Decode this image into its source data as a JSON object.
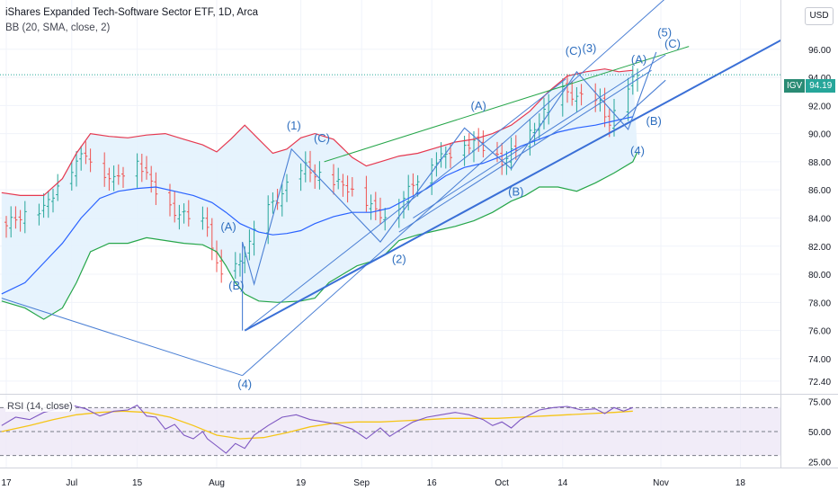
{
  "header": {
    "title": "iShares Expanded Tech-Software Sector ETF, 1D, Arca",
    "indicator": "BB (20, SMA, close, 2)",
    "rsi_label": "RSI (14, close)",
    "currency": "USD",
    "symbol": "IGV",
    "last_price": "94.19"
  },
  "colors": {
    "up": "#26a69a",
    "down": "#ef5350",
    "bb_upper": "#e53950",
    "bb_basis": "#2962ff",
    "bb_lower": "#26a64a",
    "bb_fill": "#e3f2fd",
    "rsi_line": "#7e57c2",
    "rsi_ma": "#f5c518",
    "wave_line": "#4a7fd4",
    "wave_label": "#2f6fbf",
    "trend_line": "#3a6fd6"
  },
  "chart_data": {
    "type": "candlestick",
    "title": "iShares Expanded Tech-Software Sector ETF, 1D, Arca",
    "ylim": [
      71.5,
      99.5
    ],
    "y_ticks": [
      "96.00",
      "94.00",
      "92.00",
      "90.00",
      "88.00",
      "86.00",
      "84.00",
      "82.00",
      "80.00",
      "78.00",
      "76.00",
      "74.00",
      "72.40"
    ],
    "x_ticks": [
      {
        "label": "17",
        "day": 0
      },
      {
        "label": "Jul",
        "day": 14
      },
      {
        "label": "15",
        "day": 28
      },
      {
        "label": "Aug",
        "day": 45
      },
      {
        "label": "19",
        "day": 63
      },
      {
        "label": "Sep",
        "day": 76
      },
      {
        "label": "16",
        "day": 91
      },
      {
        "label": "Oct",
        "day": 106
      },
      {
        "label": "14",
        "day": 119
      },
      {
        "label": "Nov",
        "day": 140
      },
      {
        "label": "18",
        "day": 157
      }
    ],
    "close_path": [
      [
        -1,
        83.2
      ],
      [
        3,
        84.2
      ],
      [
        8,
        84.6
      ],
      [
        12,
        86.9
      ],
      [
        17,
        88.6
      ],
      [
        20,
        87.5
      ],
      [
        23,
        86.6
      ],
      [
        26,
        87.7
      ],
      [
        28,
        88.2
      ],
      [
        31,
        86.4
      ],
      [
        34,
        85.2
      ],
      [
        37,
        84.2
      ],
      [
        40,
        84.0
      ],
      [
        43,
        83.6
      ],
      [
        45,
        80.5
      ],
      [
        47,
        79.3
      ],
      [
        49,
        80.4
      ],
      [
        52,
        82.2
      ],
      [
        55,
        84.3
      ],
      [
        58,
        85.4
      ],
      [
        61,
        86.6
      ],
      [
        64,
        87.6
      ],
      [
        67,
        87.0
      ],
      [
        70,
        86.5
      ],
      [
        73,
        86.2
      ],
      [
        76,
        85.6
      ],
      [
        79,
        84.4
      ],
      [
        82,
        84.1
      ],
      [
        85,
        85.4
      ],
      [
        88,
        86.9
      ],
      [
        91,
        88.0
      ],
      [
        94,
        88.4
      ],
      [
        97,
        89.1
      ],
      [
        100,
        89.4
      ],
      [
        103,
        88.8
      ],
      [
        106,
        88.1
      ],
      [
        109,
        88.8
      ],
      [
        112,
        89.9
      ],
      [
        115,
        91.5
      ],
      [
        118,
        93.1
      ],
      [
        121,
        92.8
      ],
      [
        124,
        92.3
      ],
      [
        127,
        92.1
      ],
      [
        129,
        90.8
      ],
      [
        132,
        92.4
      ],
      [
        133,
        93.2
      ],
      [
        135,
        94.2
      ]
    ],
    "bb_upper": [
      [
        -1,
        85.8
      ],
      [
        3,
        85.6
      ],
      [
        8,
        85.6
      ],
      [
        12,
        86.8
      ],
      [
        15,
        88.6
      ],
      [
        18,
        90.0
      ],
      [
        22,
        89.8
      ],
      [
        26,
        89.7
      ],
      [
        30,
        89.9
      ],
      [
        34,
        90.0
      ],
      [
        38,
        89.6
      ],
      [
        42,
        89.2
      ],
      [
        45,
        88.7
      ],
      [
        48,
        89.6
      ],
      [
        51,
        90.6
      ],
      [
        54,
        89.6
      ],
      [
        57,
        88.6
      ],
      [
        60,
        88.9
      ],
      [
        63,
        89.7
      ],
      [
        66,
        90.0
      ],
      [
        70,
        89.6
      ],
      [
        74,
        88.3
      ],
      [
        77,
        87.7
      ],
      [
        80,
        88.0
      ],
      [
        84,
        88.4
      ],
      [
        88,
        88.6
      ],
      [
        92,
        89.0
      ],
      [
        96,
        89.4
      ],
      [
        100,
        89.6
      ],
      [
        104,
        90.0
      ],
      [
        108,
        90.6
      ],
      [
        112,
        91.6
      ],
      [
        116,
        93.0
      ],
      [
        120,
        94.1
      ],
      [
        124,
        94.4
      ],
      [
        128,
        94.6
      ],
      [
        131,
        94.4
      ],
      [
        134,
        94.5
      ]
    ],
    "bb_basis": [
      [
        -1,
        78.6
      ],
      [
        4,
        79.4
      ],
      [
        8,
        80.8
      ],
      [
        12,
        82.2
      ],
      [
        16,
        84.0
      ],
      [
        20,
        85.4
      ],
      [
        24,
        85.9
      ],
      [
        28,
        86.1
      ],
      [
        32,
        86.2
      ],
      [
        36,
        85.9
      ],
      [
        40,
        85.6
      ],
      [
        44,
        85.1
      ],
      [
        47,
        84.4
      ],
      [
        50,
        83.6
      ],
      [
        54,
        83.0
      ],
      [
        57,
        82.8
      ],
      [
        60,
        82.9
      ],
      [
        63,
        83.1
      ],
      [
        66,
        83.6
      ],
      [
        70,
        84.1
      ],
      [
        74,
        84.4
      ],
      [
        78,
        84.4
      ],
      [
        82,
        84.7
      ],
      [
        86,
        85.4
      ],
      [
        90,
        86.1
      ],
      [
        94,
        87.0
      ],
      [
        98,
        87.6
      ],
      [
        102,
        87.9
      ],
      [
        106,
        88.4
      ],
      [
        110,
        89.1
      ],
      [
        114,
        89.6
      ],
      [
        118,
        90.1
      ],
      [
        122,
        90.4
      ],
      [
        126,
        90.6
      ],
      [
        130,
        90.9
      ],
      [
        134,
        91.2
      ]
    ],
    "bb_lower": [
      [
        -1,
        78.1
      ],
      [
        4,
        77.6
      ],
      [
        8,
        76.8
      ],
      [
        12,
        77.6
      ],
      [
        15,
        79.4
      ],
      [
        18,
        81.6
      ],
      [
        22,
        82.2
      ],
      [
        26,
        82.2
      ],
      [
        30,
        82.6
      ],
      [
        34,
        82.4
      ],
      [
        38,
        82.2
      ],
      [
        42,
        82.1
      ],
      [
        45,
        81.6
      ],
      [
        47,
        80.6
      ],
      [
        49,
        79.4
      ],
      [
        51,
        78.6
      ],
      [
        54,
        78.1
      ],
      [
        58,
        78.0
      ],
      [
        63,
        78.1
      ],
      [
        66,
        78.3
      ],
      [
        69,
        79.4
      ],
      [
        72,
        80.0
      ],
      [
        75,
        80.6
      ],
      [
        78,
        80.9
      ],
      [
        81,
        81.4
      ],
      [
        84,
        82.4
      ],
      [
        88,
        82.8
      ],
      [
        92,
        83.1
      ],
      [
        96,
        83.4
      ],
      [
        100,
        83.8
      ],
      [
        104,
        84.4
      ],
      [
        108,
        85.2
      ],
      [
        111,
        85.6
      ],
      [
        114,
        86.2
      ],
      [
        118,
        86.2
      ],
      [
        122,
        85.9
      ],
      [
        126,
        86.5
      ],
      [
        130,
        87.2
      ],
      [
        134,
        88.0
      ],
      [
        135,
        88.7
      ]
    ],
    "rsi": {
      "ylim": [
        20,
        80
      ],
      "levels": [
        70,
        50,
        30
      ],
      "tick_labels": [
        "75.00",
        "50.00",
        "25.00"
      ],
      "values": [
        [
          -1,
          55
        ],
        [
          2,
          62
        ],
        [
          5,
          60
        ],
        [
          8,
          66
        ],
        [
          11,
          69
        ],
        [
          14,
          72
        ],
        [
          17,
          69
        ],
        [
          20,
          63
        ],
        [
          23,
          67
        ],
        [
          26,
          68
        ],
        [
          28,
          72
        ],
        [
          30,
          63
        ],
        [
          32,
          62
        ],
        [
          34,
          52
        ],
        [
          36,
          56
        ],
        [
          38,
          47
        ],
        [
          40,
          44
        ],
        [
          42,
          50
        ],
        [
          43,
          44
        ],
        [
          45,
          38
        ],
        [
          47,
          32
        ],
        [
          49,
          40
        ],
        [
          51,
          36
        ],
        [
          53,
          47
        ],
        [
          56,
          55
        ],
        [
          59,
          62
        ],
        [
          62,
          64
        ],
        [
          65,
          60
        ],
        [
          68,
          58
        ],
        [
          71,
          56
        ],
        [
          74,
          52
        ],
        [
          77,
          44
        ],
        [
          80,
          53
        ],
        [
          82,
          46
        ],
        [
          84,
          51
        ],
        [
          87,
          58
        ],
        [
          90,
          62
        ],
        [
          93,
          64
        ],
        [
          96,
          66
        ],
        [
          99,
          64
        ],
        [
          102,
          60
        ],
        [
          104,
          55
        ],
        [
          106,
          58
        ],
        [
          108,
          53
        ],
        [
          110,
          60
        ],
        [
          112,
          64
        ],
        [
          114,
          68
        ],
        [
          117,
          70
        ],
        [
          120,
          71
        ],
        [
          123,
          68
        ],
        [
          126,
          69
        ],
        [
          128,
          65
        ],
        [
          130,
          70
        ],
        [
          132,
          67
        ],
        [
          134,
          70
        ]
      ],
      "ma": [
        [
          -1,
          50
        ],
        [
          5,
          55
        ],
        [
          10,
          60
        ],
        [
          15,
          64
        ],
        [
          20,
          66
        ],
        [
          25,
          67
        ],
        [
          30,
          66
        ],
        [
          35,
          62
        ],
        [
          40,
          55
        ],
        [
          45,
          47
        ],
        [
          50,
          44
        ],
        [
          55,
          45
        ],
        [
          60,
          49
        ],
        [
          65,
          54
        ],
        [
          70,
          57
        ],
        [
          75,
          58
        ],
        [
          80,
          58
        ],
        [
          85,
          59
        ],
        [
          90,
          60
        ],
        [
          95,
          61
        ],
        [
          100,
          61
        ],
        [
          105,
          61
        ],
        [
          110,
          62
        ],
        [
          115,
          63
        ],
        [
          120,
          64
        ],
        [
          125,
          65
        ],
        [
          130,
          66
        ],
        [
          134,
          67
        ]
      ]
    },
    "wave_labels": [
      {
        "text": "(1)",
        "day": 61.5,
        "price": 90.3
      },
      {
        "text": "(C)",
        "day": 67.5,
        "price": 89.4
      },
      {
        "text": "(A)",
        "day": 47.5,
        "price": 83.1
      },
      {
        "text": "(B)",
        "day": 49.2,
        "price": 78.9
      },
      {
        "text": "(4)",
        "day": 51.0,
        "price": 71.9
      },
      {
        "text": "(2)",
        "day": 84.0,
        "price": 80.8
      },
      {
        "text": "(A)",
        "day": 101.0,
        "price": 91.7
      },
      {
        "text": "(B)",
        "day": 109.0,
        "price": 85.6
      },
      {
        "text": "(C)",
        "day": 121.3,
        "price": 95.6
      },
      {
        "text": "(3)",
        "day": 124.7,
        "price": 95.8
      },
      {
        "text": "(A)",
        "day": 135.3,
        "price": 95.0
      },
      {
        "text": "(4)",
        "day": 135.0,
        "price": 88.5
      },
      {
        "text": "(B)",
        "day": 138.5,
        "price": 90.6
      },
      {
        "text": "(5)",
        "day": 140.8,
        "price": 96.9
      },
      {
        "text": "(C)",
        "day": 142.5,
        "price": 96.1
      }
    ],
    "trend_lines": [
      {
        "from": [
          -1,
          78.3
        ],
        "to": [
          50.5,
          72.8
        ],
        "style": "thin"
      },
      {
        "from": [
          50.5,
          72.8
        ],
        "to": [
          144,
          100.5
        ],
        "style": "thin"
      },
      {
        "from": [
          51,
          76.0
        ],
        "to": [
          171,
          97.6
        ],
        "style": "thick"
      },
      {
        "from": [
          51,
          76.0
        ],
        "to": [
          119.7,
          93.9
        ],
        "style": "thin"
      },
      {
        "from": [
          68,
          88.0
        ],
        "to": [
          146,
          96.2
        ],
        "style": "thin",
        "color": "#26a64a"
      },
      {
        "from": [
          84,
          83.0
        ],
        "to": [
          138,
          94.5
        ],
        "style": "thin"
      },
      {
        "from": [
          87,
          84.0
        ],
        "to": [
          141,
          95.6
        ],
        "style": "thin"
      }
    ],
    "wave_paths": [
      [
        [
          50.5,
          76.0
        ],
        [
          50.5,
          82.3
        ],
        [
          53,
          79.3
        ],
        [
          61,
          88.9
        ],
        [
          80,
          82.3
        ],
        [
          98,
          90.4
        ],
        [
          108,
          87.5
        ],
        [
          122,
          94.4
        ],
        [
          133,
          90.3
        ],
        [
          139,
          95.8
        ]
      ],
      [
        [
          130,
          90.5
        ],
        [
          141,
          93.8
        ]
      ]
    ],
    "last_price_line": 94.19
  }
}
